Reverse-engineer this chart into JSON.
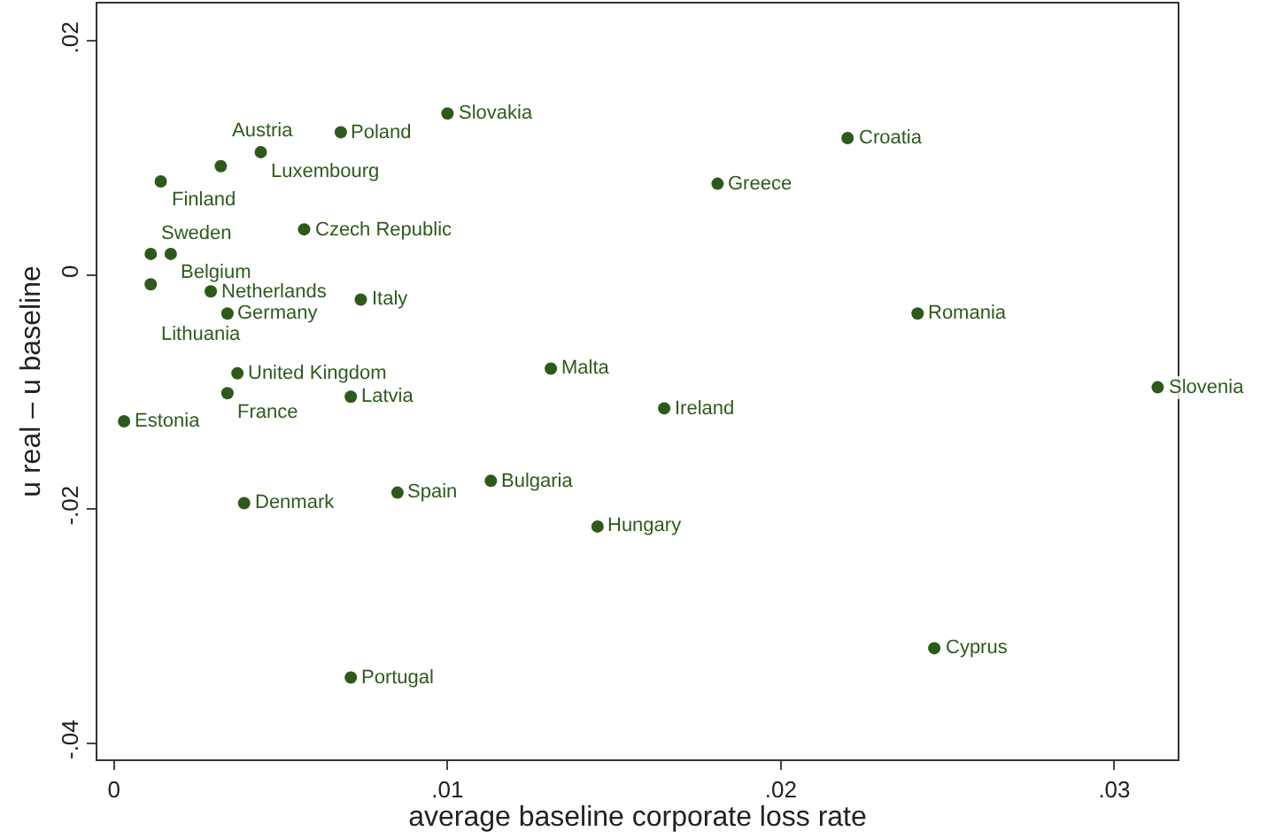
{
  "chart_data": {
    "type": "scatter",
    "xlabel": "average baseline corporate loss rate",
    "ylabel": "u real – u baseline",
    "x": [
      0.01,
      0.0068,
      0.0044,
      0.0032,
      0.0014,
      0.0057,
      0.0011,
      0.0017,
      0.0011,
      0.0029,
      0.0074,
      0.0034,
      0.0037,
      0.0034,
      0.0071,
      0.0003,
      0.0131,
      0.0165,
      0.0313,
      0.0241,
      0.0181,
      0.022,
      0.0039,
      0.0085,
      0.0113,
      0.0145,
      0.0071,
      0.0246
    ],
    "series": [
      {
        "color": "#2d5a1b",
        "values": [
          0.0138,
          0.0122,
          0.0105,
          0.0093,
          0.008,
          0.0039,
          0.0018,
          0.0018,
          -0.0008,
          -0.0014,
          -0.0021,
          -0.0033,
          -0.0084,
          -0.0101,
          -0.0104,
          -0.0125,
          -0.008,
          -0.0114,
          -0.0096,
          -0.0033,
          0.0078,
          0.0117,
          -0.0195,
          -0.0186,
          -0.0176,
          -0.0215,
          -0.0344,
          -0.0319
        ]
      }
    ],
    "annotations": [
      {
        "text": "Slovakia",
        "x": 0.01,
        "y": 0.0138
      },
      {
        "text": "Poland",
        "x": 0.0068,
        "y": 0.0122
      },
      {
        "text": "Luxembourg",
        "x": 0.0044,
        "y": 0.0105
      },
      {
        "text": "Austria",
        "x": 0.0032,
        "y": 0.0093
      },
      {
        "text": "Finland",
        "x": 0.0014,
        "y": 0.008
      },
      {
        "text": "Czech Republic",
        "x": 0.0057,
        "y": 0.0039
      },
      {
        "text": "Sweden",
        "x": 0.0011,
        "y": 0.0018
      },
      {
        "text": "Belgium",
        "x": 0.0017,
        "y": 0.0018
      },
      {
        "text": "Lithuania",
        "x": 0.0011,
        "y": -0.0008
      },
      {
        "text": "Netherlands",
        "x": 0.0029,
        "y": -0.0014
      },
      {
        "text": "Italy",
        "x": 0.0074,
        "y": -0.0021
      },
      {
        "text": "Germany",
        "x": 0.0034,
        "y": -0.0033
      },
      {
        "text": "United Kingdom",
        "x": 0.0037,
        "y": -0.0084
      },
      {
        "text": "France",
        "x": 0.0034,
        "y": -0.0101
      },
      {
        "text": "Latvia",
        "x": 0.0071,
        "y": -0.0104
      },
      {
        "text": "Estonia",
        "x": 0.0003,
        "y": -0.0125
      },
      {
        "text": "Malta",
        "x": 0.0131,
        "y": -0.008
      },
      {
        "text": "Ireland",
        "x": 0.0165,
        "y": -0.0114
      },
      {
        "text": "Slovenia",
        "x": 0.0313,
        "y": -0.0096
      },
      {
        "text": "Romania",
        "x": 0.0241,
        "y": -0.0033
      },
      {
        "text": "Greece",
        "x": 0.0181,
        "y": 0.0078
      },
      {
        "text": "Croatia",
        "x": 0.022,
        "y": 0.0117
      },
      {
        "text": "Denmark",
        "x": 0.0039,
        "y": -0.0195
      },
      {
        "text": "Spain",
        "x": 0.0085,
        "y": -0.0186
      },
      {
        "text": "Bulgaria",
        "x": 0.0113,
        "y": -0.0176
      },
      {
        "text": "Hungary",
        "x": 0.0145,
        "y": -0.0215
      },
      {
        "text": "Portugal",
        "x": 0.0071,
        "y": -0.0344
      },
      {
        "text": "Cyprus",
        "x": 0.0246,
        "y": -0.0319
      }
    ],
    "xlim": [
      -0.0005,
      0.0319
    ],
    "ylim": [
      -0.0414,
      0.0232
    ],
    "xticks": [
      0,
      {
        "value": 0.01,
        "label": ".01"
      },
      {
        "value": 0.02,
        "label": ".02"
      },
      {
        "value": 0.03,
        "label": ".03"
      }
    ],
    "yticks": [
      {
        "value": 0.02,
        "label": ".02"
      },
      0,
      {
        "value": -0.02,
        "label": "-.02"
      },
      {
        "value": -0.04,
        "label": "-.04"
      }
    ],
    "marker": "circle"
  }
}
